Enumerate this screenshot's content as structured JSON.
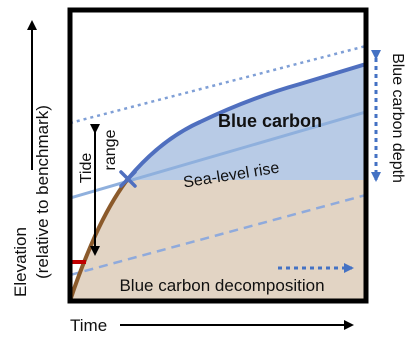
{
  "diagram": {
    "y_axis_label_line1": "Elevation",
    "y_axis_label_line2": "(relative to benchmark)",
    "x_axis_label": "Time",
    "blue_carbon_label": "Blue carbon",
    "sea_level_rise_label": "Sea-level rise",
    "tide_label": "Tide",
    "range_label": "range",
    "blue_carbon_depth_label": "Blue carbon depth",
    "decomposition_label": "Blue carbon decomposition"
  },
  "colors": {
    "frame": "#000000",
    "tan_fill": "#e2d4c4",
    "blue_fill": "#b8cbe6",
    "blue_curve": "#4f6fbf",
    "brown_curve": "#8b5a2b",
    "sea_level_line": "#8fb0dd",
    "dotted_blue": "#7f9fd6",
    "dashed_blue": "#8faadc",
    "red_marker": "#c00000",
    "arrow_blue": "#4472c4"
  }
}
